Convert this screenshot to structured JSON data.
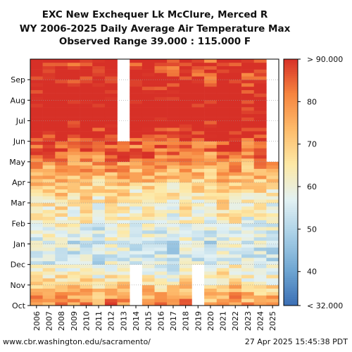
{
  "chart_data": {
    "type": "heatmap",
    "title": [
      "EXC New Exchequer Lk McClure, Merced R",
      "WY 2006-2025 Daily Average Air Temperature Max",
      "Observed Range 39.000 : 115.000 F"
    ],
    "x_categories": [
      "2006",
      "2007",
      "2008",
      "2009",
      "2010",
      "2011",
      "2012",
      "2013",
      "2014",
      "2015",
      "2016",
      "2017",
      "2018",
      "2019",
      "2020",
      "2021",
      "2022",
      "2023",
      "2024",
      "2025"
    ],
    "y_ticks": [
      "Oct",
      "Nov",
      "Dec",
      "Jan",
      "Feb",
      "Mar",
      "Apr",
      "May",
      "Jun",
      "Jul",
      "Aug",
      "Sep"
    ],
    "grid": true,
    "colorbar": {
      "ticks": [
        {
          "value": 90,
          "label": "> 90.000"
        },
        {
          "value": 80,
          "label": "80"
        },
        {
          "value": 70,
          "label": "70"
        },
        {
          "value": 60,
          "label": "60"
        },
        {
          "value": 50,
          "label": "50"
        },
        {
          "value": 40,
          "label": "40"
        },
        {
          "value": 32,
          "label": "< 32.000"
        }
      ],
      "min": 32,
      "max": 90,
      "colors": [
        "#3b6fb5",
        "#6fa6d2",
        "#a8cfe6",
        "#e2f1f3",
        "#fde9a6",
        "#fdbb6b",
        "#f6853f",
        "#d73027"
      ]
    },
    "monthly_mean_approx": [
      {
        "month": "Oct",
        "value": 80
      },
      {
        "month": "Nov",
        "value": 66
      },
      {
        "month": "Dec",
        "value": 56
      },
      {
        "month": "Jan",
        "value": 55
      },
      {
        "month": "Feb",
        "value": 60
      },
      {
        "month": "Mar",
        "value": 64
      },
      {
        "month": "Apr",
        "value": 71
      },
      {
        "month": "May",
        "value": 80
      },
      {
        "month": "Jun",
        "value": 89
      },
      {
        "month": "Jul",
        "value": 96
      },
      {
        "month": "Aug",
        "value": 95
      },
      {
        "month": "Sep",
        "value": 90
      }
    ],
    "missing_periods": [
      {
        "year": "2013",
        "from_month": "Jun",
        "to_month": "Sep"
      },
      {
        "year": "2014",
        "from_month": "Oct",
        "to_month": "Nov"
      },
      {
        "year": "2019",
        "from_month": "Oct",
        "to_month": "Nov"
      },
      {
        "year": "2025",
        "from_month": "May",
        "to_month": "Sep"
      }
    ]
  },
  "footer": {
    "source": "www.cbr.washington.edu/sacramento/",
    "timestamp": "27 Apr 2025 15:45:38 PDT"
  }
}
